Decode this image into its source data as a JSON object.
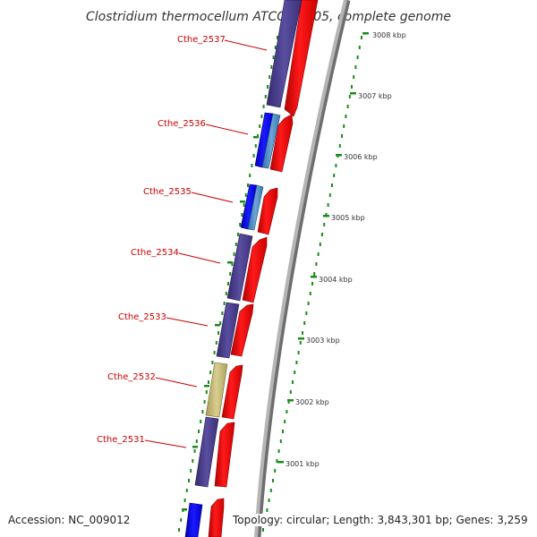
{
  "title": "Clostridium thermocellum ATCC 27405, complete genome",
  "footer": {
    "accession": "Accession: NC_009012",
    "topology": "Topology: circular; Length: 3,843,301 bp; Genes: 3,259"
  },
  "genes": [
    {
      "label": "Cthe_2537"
    },
    {
      "label": "Cthe_2536"
    },
    {
      "label": "Cthe_2535"
    },
    {
      "label": "Cthe_2534"
    },
    {
      "label": "Cthe_2533"
    },
    {
      "label": "Cthe_2532"
    },
    {
      "label": "Cthe_2531"
    }
  ],
  "ticks": [
    {
      "label": "3008 kbp"
    },
    {
      "label": "3007 kbp"
    },
    {
      "label": "3006 kbp"
    },
    {
      "label": "3005 kbp"
    },
    {
      "label": "3004 kbp"
    },
    {
      "label": "3003 kbp"
    },
    {
      "label": "3002 kbp"
    },
    {
      "label": "3001 kbp"
    }
  ],
  "colors": {
    "cds_forward": "#ff0000",
    "cds_reverse_purple": "#4b3f8c",
    "cds_reverse_blue": "#0000ff",
    "cds_reverse_light": "#4a8cc4",
    "cds_reverse_tan": "#c2b872",
    "backbone": "#9a9a9a",
    "ticks": "#1a8c1a",
    "label": "#cc0000"
  }
}
